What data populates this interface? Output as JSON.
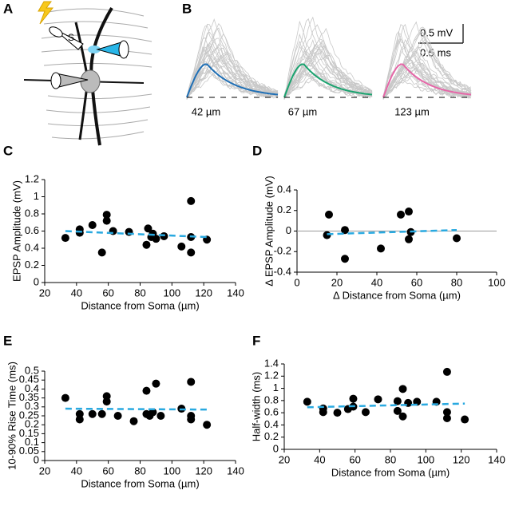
{
  "panel_labels": [
    "A",
    "B",
    "C",
    "D",
    "E",
    "F"
  ],
  "diagram": {
    "electrode_label": "S"
  },
  "traces": {
    "labels": [
      "42 µm",
      "67 µm",
      "123 µm"
    ],
    "scale_y": "0.5 mV",
    "scale_x": "0.5 ms"
  },
  "chart_data": [
    {
      "type": "scatter",
      "x_label": "Distance from Soma (µm)",
      "y_label": "EPSP Amplitude (mV)",
      "x": [
        33,
        42,
        42,
        50,
        56,
        59,
        59,
        63,
        73,
        84,
        85,
        87,
        88,
        90,
        95,
        106,
        112,
        112,
        112,
        122
      ],
      "values": [
        0.52,
        0.58,
        0.62,
        0.67,
        0.35,
        0.72,
        0.79,
        0.6,
        0.59,
        0.44,
        0.63,
        0.53,
        0.57,
        0.51,
        0.54,
        0.42,
        0.95,
        0.35,
        0.53,
        0.5
      ],
      "color": "#000000",
      "xlim": [
        20,
        140
      ],
      "xticks": [
        20,
        40,
        60,
        80,
        100,
        120,
        140
      ],
      "ylim": [
        0,
        1.2
      ],
      "yticks": [
        0,
        0.2,
        0.4,
        0.6,
        0.8,
        1,
        1.2
      ],
      "trend": {
        "x": [
          33,
          122
        ],
        "values": [
          0.6,
          0.53
        ],
        "color": "#29a9e0"
      }
    },
    {
      "type": "scatter",
      "x_label": "Δ Distance from Soma (µm)",
      "y_label": "Δ EPSP Amplitude (mV)",
      "x": [
        15,
        16,
        24,
        24,
        42,
        52,
        56,
        56,
        57,
        80
      ],
      "values": [
        -0.04,
        0.16,
        0.01,
        -0.27,
        -0.17,
        0.16,
        0.19,
        -0.08,
        -0.01,
        -0.07
      ],
      "color": "#000000",
      "xlim": [
        0,
        100
      ],
      "xticks": [
        0,
        20,
        40,
        60,
        80,
        100
      ],
      "ylim": [
        -0.4,
        0.4
      ],
      "yticks": [
        -0.4,
        -0.2,
        0,
        0.2,
        0.4
      ],
      "reference_line": 0,
      "trend": {
        "x": [
          15,
          80
        ],
        "values": [
          -0.03,
          0.01
        ],
        "color": "#29a9e0"
      }
    },
    {
      "type": "scatter",
      "x_label": "Distance from Soma (µm)",
      "y_label": "10-90% Rise Time (ms)",
      "x": [
        33,
        42,
        42,
        50,
        56,
        59,
        59,
        66,
        76,
        84,
        84,
        86,
        88,
        90,
        93,
        106,
        112,
        112,
        112,
        122
      ],
      "values": [
        0.35,
        0.26,
        0.23,
        0.26,
        0.26,
        0.33,
        0.36,
        0.25,
        0.22,
        0.26,
        0.39,
        0.25,
        0.27,
        0.43,
        0.25,
        0.29,
        0.44,
        0.25,
        0.23,
        0.2
      ],
      "color": "#000000",
      "xlim": [
        20,
        140
      ],
      "xticks": [
        20,
        40,
        60,
        80,
        100,
        120,
        140
      ],
      "ylim": [
        0,
        0.5
      ],
      "yticks": [
        0,
        0.05,
        0.1,
        0.15,
        0.2,
        0.25,
        0.3,
        0.35,
        0.4,
        0.45,
        0.5
      ],
      "trend": {
        "x": [
          33,
          122
        ],
        "values": [
          0.29,
          0.285
        ],
        "color": "#29a9e0"
      }
    },
    {
      "type": "scatter",
      "x_label": "Distance from Soma (µm)",
      "y_label": "Half-width (ms)",
      "x": [
        33,
        42,
        42,
        50,
        56,
        59,
        59,
        66,
        73,
        84,
        84,
        87,
        87,
        90,
        95,
        106,
        112,
        112,
        112,
        122
      ],
      "values": [
        0.78,
        0.67,
        0.61,
        0.6,
        0.66,
        0.7,
        0.83,
        0.61,
        0.82,
        0.79,
        0.63,
        0.54,
        0.99,
        0.76,
        0.78,
        0.78,
        1.27,
        0.61,
        0.51,
        0.49
      ],
      "color": "#000000",
      "xlim": [
        20,
        140
      ],
      "xticks": [
        20,
        40,
        60,
        80,
        100,
        120,
        140
      ],
      "ylim": [
        0,
        1.4
      ],
      "yticks": [
        0,
        0.2,
        0.4,
        0.6,
        0.8,
        1,
        1.2,
        1.4
      ],
      "trend": {
        "x": [
          33,
          122
        ],
        "values": [
          0.69,
          0.75
        ],
        "color": "#29a9e0"
      }
    }
  ]
}
